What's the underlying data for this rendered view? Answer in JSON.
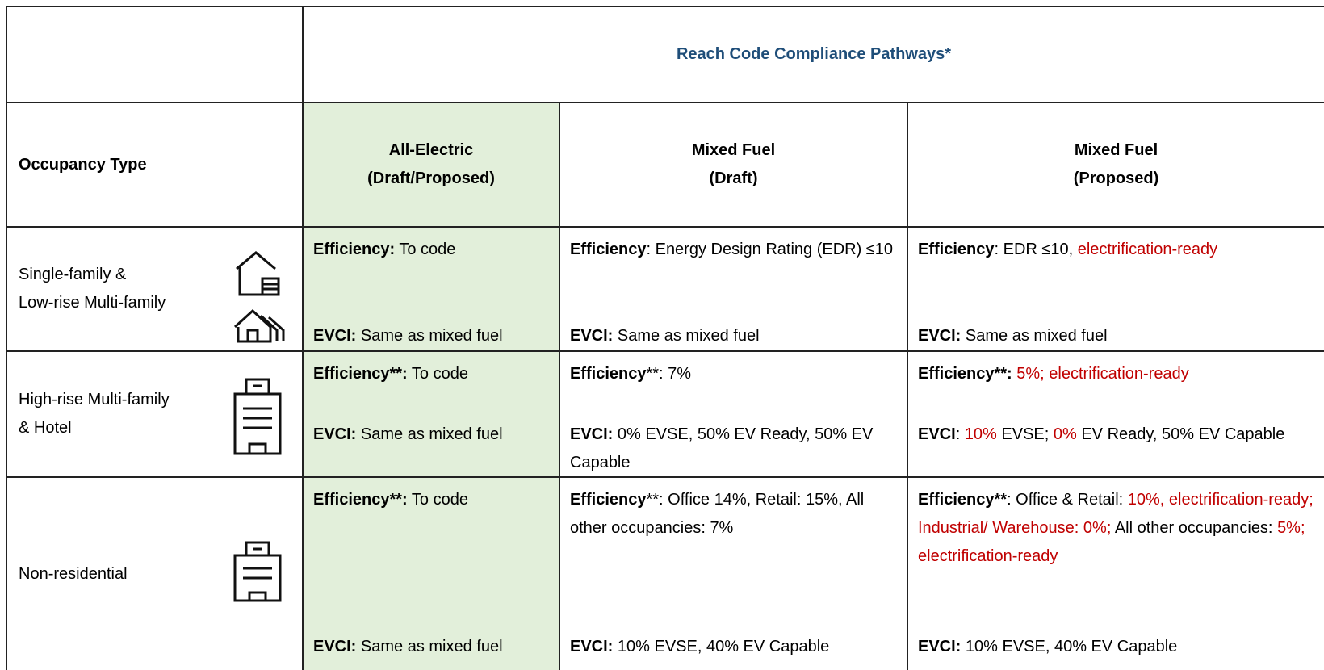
{
  "header": {
    "title": "Reach Code Compliance Pathways*"
  },
  "columns": [
    [
      "Occupancy Type"
    ],
    [
      "All-Electric",
      "(Draft/Proposed)"
    ],
    [
      "Mixed Fuel",
      "(Draft)"
    ],
    [
      "Mixed Fuel",
      "(Proposed)"
    ]
  ],
  "highlight_color": "#e2efda",
  "rows": [
    {
      "occupancy": [
        "Single-family &",
        "Low-rise Multi-family"
      ],
      "cells": [
        {
          "efficiency": [
            {
              "text": "Efficiency:",
              "bold": true
            },
            {
              "text": " To code"
            }
          ],
          "evci": [
            {
              "text": "EVCI:",
              "bold": true
            },
            {
              "text": " Same as mixed fuel"
            }
          ]
        },
        {
          "efficiency": [
            {
              "text": "Efficiency",
              "bold": true
            },
            {
              "text": ": Energy Design Rating (EDR) ≤10"
            }
          ],
          "evci": [
            {
              "text": "EVCI:",
              "bold": true
            },
            {
              "text": " Same as mixed fuel"
            }
          ]
        },
        {
          "efficiency": [
            {
              "text": "Efficiency",
              "bold": true
            },
            {
              "text": ": EDR ≤10, "
            },
            {
              "text": "electrification-ready",
              "color": "#c00000"
            }
          ],
          "evci": [
            {
              "text": "EVCI:",
              "bold": true
            },
            {
              "text": " Same as mixed fuel"
            }
          ]
        }
      ]
    },
    {
      "occupancy": [
        "High-rise Multi-family",
        "& Hotel"
      ],
      "cells": [
        {
          "efficiency": [
            {
              "text": "Efficiency**:",
              "bold": true
            },
            {
              "text": " To code"
            }
          ],
          "evci": [
            {
              "text": "EVCI:",
              "bold": true
            },
            {
              "text": " Same as mixed fuel"
            }
          ]
        },
        {
          "efficiency": [
            {
              "text": "Efficiency",
              "bold": true
            },
            {
              "text": "**: 7%"
            }
          ],
          "evci": [
            {
              "text": "EVCI:",
              "bold": true
            },
            {
              "text": " 0% EVSE, 50% EV Ready, 50% EV Capable"
            }
          ]
        },
        {
          "efficiency": [
            {
              "text": "Efficiency**:",
              "bold": true
            },
            {
              "text": " 5%; electrification-ready",
              "color": "#c00000"
            }
          ],
          "evci": [
            {
              "text": "EVCI",
              "bold": true
            },
            {
              "text": ": "
            },
            {
              "text": "10%",
              "color": "#c00000"
            },
            {
              "text": " EVSE; "
            },
            {
              "text": "0%",
              "color": "#c00000"
            },
            {
              "text": " EV Ready, 50% EV Capable"
            }
          ]
        }
      ]
    },
    {
      "occupancy": [
        "Non-residential"
      ],
      "cells": [
        {
          "efficiency": [
            {
              "text": "Efficiency**:",
              "bold": true
            },
            {
              "text": " To code"
            }
          ],
          "evci": [
            {
              "text": "EVCI:",
              "bold": true
            },
            {
              "text": " Same as mixed fuel"
            }
          ]
        },
        {
          "efficiency": [
            {
              "text": "Efficiency",
              "bold": true
            },
            {
              "text": "**: Office 14%, Retail: 15%, All other occupancies: 7%"
            }
          ],
          "evci": [
            {
              "text": "EVCI:",
              "bold": true
            },
            {
              "text": " 10% EVSE, 40% EV Capable"
            }
          ]
        },
        {
          "efficiency": [
            {
              "text": "Efficiency**",
              "bold": true
            },
            {
              "text": ": Office & Retail: "
            },
            {
              "text": "10%, electrification-ready; Industrial/ Warehouse: 0%;",
              "color": "#c00000"
            },
            {
              "text": " All other occupancies: "
            },
            {
              "text": "5%; electrification-ready",
              "color": "#c00000"
            }
          ],
          "evci": [
            {
              "text": "EVCI:",
              "bold": true
            },
            {
              "text": " 10% EVSE, 40% EV Capable"
            }
          ]
        }
      ]
    }
  ]
}
